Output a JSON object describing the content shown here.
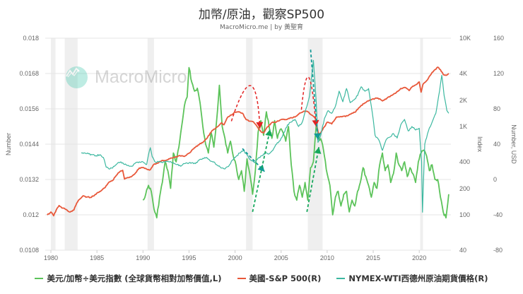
{
  "header": {
    "title": "加幣/原油，觀察SP500",
    "subtitle": "MacroMicro.me | by 黃聖育"
  },
  "watermark": {
    "text": "MacroMicro",
    "icon": "macromicro-logo-icon"
  },
  "colors": {
    "green": "#5cc35a",
    "red": "#e8583a",
    "teal": "#3cb8a0",
    "recession": "#efefef",
    "grid": "#e6e6e6",
    "arrow_red": "#e32222",
    "arrow_teal": "#139a96",
    "arrow_green": "#16a85c"
  },
  "legend": [
    {
      "label": "美元/加幣÷美元指數 (全球貨幣相對加幣價值,L)",
      "color": "#5cc35a"
    },
    {
      "label": "美國-S&P 500(R)",
      "color": "#e8583a"
    },
    {
      "label": "NYMEX-WTI西德州原油期貨價格(R)",
      "color": "#3cb8a0"
    }
  ],
  "chart_data": {
    "type": "line",
    "title": "加幣/原油，觀察SP500",
    "subtitle": "MacroMicro.me | by 黃聖育",
    "xlabel": "",
    "x_ticks": [
      "1980",
      "1985",
      "1990",
      "1995",
      "2000",
      "2005",
      "2010",
      "2015",
      "2020"
    ],
    "x_range": [
      1979.4,
      2023.5
    ],
    "recessions": [
      [
        1980.0,
        1980.5
      ],
      [
        1981.5,
        1982.9
      ],
      [
        1990.5,
        1991.2
      ],
      [
        2001.2,
        2001.9
      ],
      [
        2007.9,
        2009.5
      ],
      [
        2020.1,
        2020.3
      ]
    ],
    "axes": {
      "left": {
        "label": "Number",
        "ticks": [
          "0.018",
          "0.0168",
          "0.0156",
          "0.0144",
          "0.0132",
          "0.012",
          "0.0108"
        ],
        "range": [
          0.0108,
          0.018
        ]
      },
      "right1": {
        "label": "Index",
        "scale": "log",
        "ticks": [
          "10K",
          "4K",
          "2K",
          "1K",
          "400",
          "200",
          "100",
          "40"
        ],
        "range": [
          40,
          10000
        ]
      },
      "right2": {
        "label": "Number, USD",
        "ticks": [
          "160",
          "120",
          "80",
          "40",
          "0",
          "-40",
          "-80"
        ],
        "range": [
          -80,
          160
        ]
      }
    },
    "grid": true,
    "legend_position": "bottom",
    "series": [
      {
        "name": "美元/加幣÷美元指數 (全球貨幣相對加幣價值,L)",
        "axis": "left",
        "color": "#5cc35a",
        "x": [
          1990.0,
          1990.3,
          1990.6,
          1990.9,
          1991.2,
          1991.5,
          1991.8,
          1992.1,
          1992.4,
          1992.7,
          1993.0,
          1993.3,
          1993.6,
          1993.9,
          1994.2,
          1994.5,
          1994.8,
          1995.0,
          1995.3,
          1995.6,
          1995.9,
          1996.2,
          1996.5,
          1996.8,
          1997.1,
          1997.4,
          1997.7,
          1998.0,
          1998.3,
          1998.6,
          1998.9,
          1999.2,
          1999.5,
          1999.8,
          2000.1,
          2000.4,
          2000.7,
          2001.0,
          2001.3,
          2001.6,
          2001.9,
          2002.2,
          2002.5,
          2002.8,
          2003.1,
          2003.4,
          2003.7,
          2004.0,
          2004.3,
          2004.6,
          2004.9,
          2005.2,
          2005.5,
          2005.8,
          2006.1,
          2006.4,
          2006.7,
          2007.0,
          2007.3,
          2007.6,
          2007.9,
          2008.2,
          2008.5,
          2008.8,
          2009.1,
          2009.4,
          2009.7,
          2010.0,
          2010.3,
          2010.6,
          2010.9,
          2011.2,
          2011.5,
          2011.8,
          2012.1,
          2012.4,
          2012.7,
          2013.0,
          2013.3,
          2013.6,
          2013.9,
          2014.2,
          2014.5,
          2014.8,
          2015.1,
          2015.4,
          2015.7,
          2016.0,
          2016.3,
          2016.6,
          2016.9,
          2017.2,
          2017.5,
          2017.8,
          2018.1,
          2018.4,
          2018.7,
          2019.0,
          2019.3,
          2019.6,
          2019.9,
          2020.2,
          2020.5,
          2020.8,
          2021.1,
          2021.4,
          2021.7,
          2022.0,
          2022.3,
          2022.6,
          2022.9,
          2023.2
        ],
        "values": [
          0.0125,
          0.0127,
          0.013,
          0.0128,
          0.0122,
          0.0119,
          0.0126,
          0.0131,
          0.0138,
          0.0135,
          0.0129,
          0.0141,
          0.0138,
          0.0143,
          0.015,
          0.0157,
          0.016,
          0.017,
          0.0165,
          0.0162,
          0.0163,
          0.0158,
          0.015,
          0.0144,
          0.0141,
          0.0148,
          0.0143,
          0.0152,
          0.0164,
          0.015,
          0.0146,
          0.0141,
          0.0145,
          0.014,
          0.0137,
          0.0132,
          0.0135,
          0.0128,
          0.0139,
          0.0134,
          0.0127,
          0.0135,
          0.0148,
          0.0152,
          0.0147,
          0.0155,
          0.015,
          0.0146,
          0.0152,
          0.0146,
          0.0149,
          0.0148,
          0.0145,
          0.015,
          0.0137,
          0.0128,
          0.0125,
          0.013,
          0.0126,
          0.0131,
          0.0125,
          0.0136,
          0.0138,
          0.015,
          0.0146,
          0.0145,
          0.014,
          0.0134,
          0.013,
          0.012,
          0.0126,
          0.0128,
          0.0123,
          0.0127,
          0.0128,
          0.0121,
          0.0125,
          0.0123,
          0.0128,
          0.0131,
          0.0136,
          0.0133,
          0.013,
          0.0126,
          0.0131,
          0.0129,
          0.0137,
          0.0141,
          0.0135,
          0.0137,
          0.0131,
          0.0134,
          0.0141,
          0.0137,
          0.0135,
          0.0138,
          0.0133,
          0.0136,
          0.0134,
          0.0131,
          0.0138,
          0.0141,
          0.0142,
          0.014,
          0.0135,
          0.0137,
          0.0132,
          0.0132,
          0.0126,
          0.0121,
          0.0119,
          0.0127
        ]
      },
      {
        "name": "美國-S&P 500(R)",
        "axis": "right1",
        "color": "#e8583a",
        "x": [
          1979.6,
          1980.0,
          1980.3,
          1980.6,
          1980.9,
          1981.2,
          1981.5,
          1981.8,
          1982.1,
          1982.5,
          1982.8,
          1983.1,
          1983.5,
          1983.9,
          1984.3,
          1984.7,
          1985.1,
          1985.5,
          1985.9,
          1986.3,
          1986.7,
          1987.1,
          1987.5,
          1987.8,
          1988.0,
          1988.4,
          1988.8,
          1989.2,
          1989.6,
          1990.0,
          1990.4,
          1990.8,
          1991.2,
          1991.6,
          1992.0,
          1992.5,
          1993.0,
          1993.5,
          1994.0,
          1994.5,
          1995.0,
          1995.5,
          1996.0,
          1996.5,
          1997.0,
          1997.5,
          1998.0,
          1998.5,
          1998.8,
          1999.2,
          1999.6,
          2000.0,
          2000.4,
          2000.8,
          2001.2,
          2001.6,
          2002.0,
          2002.4,
          2002.8,
          2003.1,
          2003.5,
          2004.0,
          2004.5,
          2005.0,
          2005.5,
          2006.0,
          2006.5,
          2007.0,
          2007.5,
          2007.9,
          2008.3,
          2008.7,
          2009.1,
          2009.5,
          2010.0,
          2010.5,
          2011.0,
          2011.5,
          2012.0,
          2012.5,
          2013.0,
          2013.5,
          2014.0,
          2014.5,
          2015.0,
          2015.5,
          2016.0,
          2016.5,
          2017.0,
          2017.5,
          2018.0,
          2018.5,
          2018.9,
          2019.2,
          2019.6,
          2020.0,
          2020.2,
          2020.4,
          2020.8,
          2021.2,
          2021.6,
          2022.0,
          2022.3,
          2022.6,
          2022.9,
          2023.2
        ],
        "values": [
          100,
          108,
          98,
          115,
          128,
          120,
          118,
          112,
          108,
          114,
          136,
          150,
          165,
          160,
          158,
          165,
          180,
          190,
          205,
          235,
          245,
          280,
          310,
          320,
          255,
          265,
          275,
          300,
          340,
          345,
          330,
          325,
          375,
          385,
          410,
          415,
          440,
          450,
          470,
          460,
          500,
          560,
          620,
          660,
          750,
          900,
          980,
          1100,
          1050,
          1280,
          1350,
          1450,
          1470,
          1420,
          1200,
          1150,
          1130,
          1000,
          880,
          850,
          990,
          1110,
          1130,
          1200,
          1200,
          1260,
          1280,
          1420,
          1500,
          1470,
          1350,
          1250,
          800,
          920,
          1120,
          1070,
          1280,
          1300,
          1300,
          1380,
          1450,
          1650,
          1820,
          1950,
          2060,
          2100,
          1950,
          2100,
          2250,
          2420,
          2700,
          2760,
          2550,
          2800,
          2950,
          3200,
          2450,
          3000,
          3300,
          3800,
          4300,
          4700,
          4400,
          3900,
          3800,
          4000
        ]
      },
      {
        "name": "NYMEX-WTI西德州原油期貨價格(R)",
        "axis": "right2",
        "color": "#3cb8a0",
        "x": [
          1983.3,
          1983.7,
          1984.1,
          1984.5,
          1984.9,
          1985.3,
          1985.7,
          1986.0,
          1986.3,
          1986.6,
          1986.9,
          1987.2,
          1987.6,
          1988.0,
          1988.4,
          1988.8,
          1989.2,
          1989.6,
          1990.0,
          1990.4,
          1990.6,
          1990.8,
          1991.0,
          1991.3,
          1991.7,
          1992.1,
          1992.5,
          1992.9,
          1993.3,
          1993.7,
          1994.1,
          1994.5,
          1994.9,
          1995.3,
          1995.7,
          1996.1,
          1996.5,
          1996.9,
          1997.3,
          1997.7,
          1998.1,
          1998.5,
          1998.9,
          1999.3,
          1999.7,
          2000.1,
          2000.5,
          2000.9,
          2001.3,
          2001.7,
          2002.1,
          2002.5,
          2002.9,
          2003.3,
          2003.7,
          2004.1,
          2004.5,
          2004.9,
          2005.3,
          2005.7,
          2006.1,
          2006.5,
          2006.9,
          2007.3,
          2007.7,
          2008.1,
          2008.5,
          2008.8,
          2009.0,
          2009.3,
          2009.7,
          2010.1,
          2010.5,
          2010.9,
          2011.3,
          2011.7,
          2012.1,
          2012.5,
          2012.9,
          2013.3,
          2013.7,
          2014.1,
          2014.5,
          2014.9,
          2015.2,
          2015.6,
          2016.0,
          2016.4,
          2016.8,
          2017.2,
          2017.6,
          2018.0,
          2018.4,
          2018.8,
          2019.2,
          2019.6,
          2020.0,
          2020.25,
          2020.35,
          2020.6,
          2021.0,
          2021.4,
          2021.8,
          2022.2,
          2022.45,
          2022.7,
          2023.0,
          2023.2
        ],
        "values": [
          30,
          30,
          29,
          28,
          27,
          28,
          25,
          14,
          12,
          13,
          15,
          18,
          20,
          17,
          16,
          15,
          19,
          20,
          20,
          17,
          28,
          36,
          26,
          20,
          20,
          19,
          21,
          20,
          19,
          17,
          15,
          18,
          18,
          19,
          18,
          22,
          24,
          25,
          21,
          20,
          16,
          13,
          12,
          15,
          22,
          26,
          30,
          33,
          28,
          22,
          19,
          24,
          27,
          30,
          29,
          33,
          40,
          44,
          53,
          62,
          65,
          68,
          60,
          65,
          80,
          95,
          135,
          90,
          42,
          50,
          69,
          78,
          75,
          83,
          100,
          88,
          103,
          87,
          90,
          95,
          105,
          100,
          103,
          76,
          50,
          45,
          33,
          45,
          48,
          52,
          47,
          62,
          68,
          55,
          60,
          56,
          58,
          20,
          -37,
          40,
          55,
          65,
          75,
          100,
          118,
          95,
          78,
          75
        ]
      }
    ],
    "annotations": [
      {
        "type": "dashed-arrow-curve",
        "color": "#e32222",
        "from": [
          1999.6,
          1150
        ],
        "peak": [
          2001.7,
          2900
        ],
        "to": [
          2002.7,
          950
        ]
      },
      {
        "type": "dashed-arrow",
        "color": "#139a96",
        "from": [
          2000.8,
          35
        ],
        "to": [
          2003.2,
          9
        ]
      },
      {
        "type": "dashed-arrow",
        "color": "#16a85c",
        "from": [
          2001.9,
          0.0121
        ],
        "to": [
          2003.8,
          0.0149
        ]
      },
      {
        "type": "dashed-arrow-curve",
        "color": "#e32222",
        "from": [
          2007.2,
          1550
        ],
        "peak": [
          2008.0,
          3600
        ],
        "to": [
          2008.8,
          1000
        ]
      },
      {
        "type": "dashed-arrow",
        "color": "#139a96",
        "from": [
          2008.2,
          147
        ],
        "to": [
          2009.0,
          45
        ]
      },
      {
        "type": "dashed-arrow",
        "color": "#16a85c",
        "from": [
          2007.8,
          0.0121
        ],
        "to": [
          2009.1,
          0.0143
        ]
      }
    ]
  }
}
